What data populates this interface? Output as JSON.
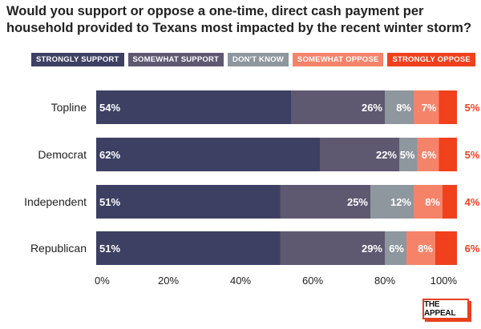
{
  "title": "Would you support or oppose a one-time, direct cash payment per household provided to Texans most impacted by the recent winter storm?",
  "logo_text": "THE APPEAL",
  "chart_data": {
    "type": "bar",
    "orientation": "horizontal",
    "stacked": true,
    "title": "Would you support or oppose a one-time, direct cash payment per household provided to Texans most impacted by the recent winter storm?",
    "categories": [
      "Topline",
      "Democrat",
      "Independent",
      "Republican"
    ],
    "series": [
      {
        "name": "STRONGLY SUPPORT",
        "color": "#3d4063",
        "label_color": "#ffffff",
        "values": [
          54,
          62,
          51,
          51
        ]
      },
      {
        "name": "SOMEWHAT SUPPORT",
        "color": "#5e5870",
        "label_color": "#ffffff",
        "values": [
          26,
          22,
          25,
          29
        ]
      },
      {
        "name": "DON'T KNOW",
        "color": "#8e969e",
        "label_color": "#ffffff",
        "values": [
          8,
          5,
          12,
          6
        ]
      },
      {
        "name": "SOMEWHAT OPPOSE",
        "color": "#f5836a",
        "label_color": "#ffffff",
        "values": [
          7,
          6,
          8,
          8
        ]
      },
      {
        "name": "STRONGLY OPPOSE",
        "color": "#f0401c",
        "label_color": "#f0401c",
        "values": [
          5,
          5,
          4,
          6
        ]
      }
    ],
    "xlim": [
      0,
      100
    ],
    "xticks": [
      "0%",
      "20%",
      "40%",
      "60%",
      "80%",
      "100%"
    ],
    "legend": "top",
    "grid": false
  }
}
